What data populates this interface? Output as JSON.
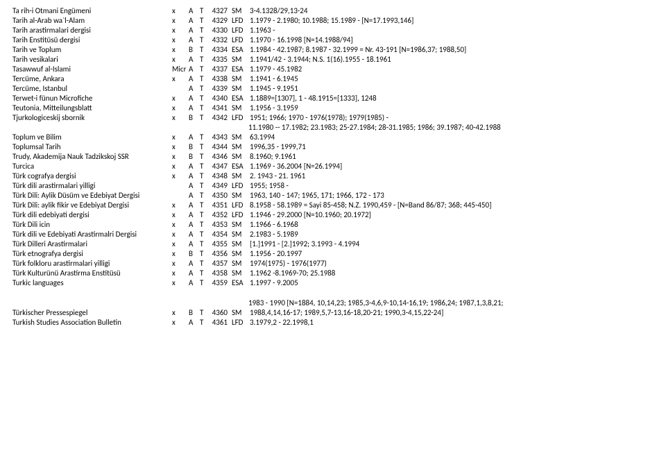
{
  "rows": [
    {
      "title": "Ta rih-i Otmani Engümeni",
      "x": "x",
      "lvl": "A",
      "t": "T",
      "num": "4327",
      "fmt": "SM",
      "range": "3-4.1328/29,13-24"
    },
    {
      "title": "Tarih al-Arab wa`l-Alam",
      "x": "x",
      "lvl": "A",
      "t": "T",
      "num": "4329",
      "fmt": "LFD",
      "range": "1.1979 - 2.1980; 10.1988; 15.1989 - [N=17.1993,146]"
    },
    {
      "title": "Tarih arastirmalari dergisi",
      "x": "x",
      "lvl": "A",
      "t": "T",
      "num": "4330",
      "fmt": "LFD",
      "range": "1.1963 -"
    },
    {
      "title": "Tarih Enstitüsü dergisi",
      "x": "x",
      "lvl": "A",
      "t": "T",
      "num": "4332",
      "fmt": "LFD",
      "range": "1.1970 - 16.1998 [N=14.1988/94]"
    },
    {
      "title": "Tarih ve Toplum",
      "x": "x",
      "lvl": "B",
      "t": "T",
      "num": "4334",
      "fmt": "ESA",
      "range": "1.1984 - 42.1987; 8.1987 - 32.1999 = Nr. 43-191 [N=1986,37; 1988,50]"
    },
    {
      "title": "Tarih vesikalari",
      "x": "x",
      "lvl": "A",
      "t": "T",
      "num": "4335",
      "fmt": "SM",
      "range": "1.1941/42 - 3.1944; N.S. 1(16).1955 - 18.1961"
    },
    {
      "title": "Tasawwuf al-Islami",
      "x": "Micr",
      "lvl": "A",
      "t": "T",
      "num": "4337",
      "fmt": "ESA",
      "range": "1.1979 - 45.1982"
    },
    {
      "title": "Tercüme, Ankara",
      "x": "x",
      "lvl": "A",
      "t": "T",
      "num": "4338",
      "fmt": "SM",
      "range": "1.1941 - 6.1945"
    },
    {
      "title": "Tercüme, Istanbul",
      "x": "",
      "lvl": "A",
      "t": "T",
      "num": "4339",
      "fmt": "SM",
      "range": "1.1945 - 9.1951"
    },
    {
      "title": "Terwet-i fünun Microfiche",
      "x": "x",
      "lvl": "A",
      "t": "T",
      "num": "4340",
      "fmt": "ESA",
      "range": "1.1889=[1307], 1 - 48.1915=[1333], 1248"
    },
    {
      "title": "Teutonia, Mitteilungsblatt",
      "x": "x",
      "lvl": "A",
      "t": "T",
      "num": "4341",
      "fmt": "SM",
      "range": "1.1956 - 3.1959"
    },
    {
      "title": "Tjurkologiceskij sbornik",
      "x": "x",
      "lvl": "B",
      "t": "T",
      "num": "4342",
      "fmt": "LFD",
      "range": "1951; 1966; 1970 - 1976(1978); 1979(1985) -"
    },
    {
      "continuation": true,
      "range": "11.1980 -- 17.1982; 23.1983; 25-27.1984; 28-31.1985; 1986; 39.1987; 40-42.1988"
    },
    {
      "title": "Toplum ve Bilim",
      "x": "x",
      "lvl": "A",
      "t": "T",
      "num": "4343",
      "fmt": "SM",
      "range": "63.1994"
    },
    {
      "title": "Toplumsal Tarih",
      "x": "x",
      "lvl": "B",
      "t": "T",
      "num": "4344",
      "fmt": "SM",
      "range": "1996,35 - 1999,71"
    },
    {
      "title": "Trudy, Akademija Nauk Tadzikskoj SSR",
      "x": "x",
      "lvl": "B",
      "t": "T",
      "num": "4346",
      "fmt": "SM",
      "range": "8.1960; 9.1961"
    },
    {
      "title": "Turcica",
      "x": "x",
      "lvl": "A",
      "t": "T",
      "num": "4347",
      "fmt": "ESA",
      "range": "1.1969 - 36.2004 [N=26.1994]"
    },
    {
      "title": "Türk cografya dergisi",
      "x": "x",
      "lvl": "A",
      "t": "T",
      "num": "4348",
      "fmt": "SM",
      "range": "2. 1943 - 21. 1961"
    },
    {
      "title": "Türk dili arastirmalari yilligi",
      "x": "",
      "lvl": "A",
      "t": "T",
      "num": "4349",
      "fmt": "LFD",
      "range": "1955; 1958 -"
    },
    {
      "title": "Türk Dili: Aylik Düsüm ve Edebiyat Dergisi",
      "x": "",
      "lvl": "A",
      "t": "T",
      "num": "4350",
      "fmt": "SM",
      "range": "1963, 140 - 147; 1965, 171; 1966, 172 - 173"
    },
    {
      "title": "Türk Dili: aylik fikir ve Edebiyat Dergisi",
      "x": "x",
      "lvl": "A",
      "t": "T",
      "num": "4351",
      "fmt": "LFD",
      "range": "8.1958 - 58.1989 = Sayi 85-458; N.Z. 1990,459 - [N=Band 86/87; 368; 445-450]"
    },
    {
      "title": "Türk dili edebiyati dergisi",
      "x": "x",
      "lvl": "A",
      "t": "T",
      "num": "4352",
      "fmt": "LFD",
      "range": "1.1946 - 29.2000 [N=10.1960; 20.1972]"
    },
    {
      "title": "Türk Dili icin",
      "x": "x",
      "lvl": "A",
      "t": "T",
      "num": "4353",
      "fmt": "SM",
      "range": "1.1966 - 6.1968"
    },
    {
      "title": "Türk dili ve Edebiyati Arastirmalri Dergisi",
      "x": "x",
      "lvl": "A",
      "t": "T",
      "num": "4354",
      "fmt": "SM",
      "range": "2.1983 - 5.1989"
    },
    {
      "title": "Türk Dilleri Arastirmalari",
      "x": "x",
      "lvl": "A",
      "t": "T",
      "num": "4355",
      "fmt": "SM",
      "range": "[1.]1991 - [2.]1992; 3.1993 - 4.1994"
    },
    {
      "title": "Türk etnografya dergisi",
      "x": "x",
      "lvl": "B",
      "t": "T",
      "num": "4356",
      "fmt": "SM",
      "range": "1.1956 - 20.1997"
    },
    {
      "title": "Türk folkloru arastirmalari yilligi",
      "x": "x",
      "lvl": "A",
      "t": "T",
      "num": "4357",
      "fmt": "SM",
      "range": "1974(1975) - 1976(1977)"
    },
    {
      "title": "Türk Kulturünü Arastirma Enstitüsü",
      "x": "x",
      "lvl": "A",
      "t": "T",
      "num": "4358",
      "fmt": "SM",
      "range": "1.1962 -8.1969-70; 25.1988"
    },
    {
      "title": "Turkic languages",
      "x": "x",
      "lvl": "A",
      "t": "T",
      "num": "4359",
      "fmt": "ESA",
      "range": "1.1997 - 9.2005"
    },
    {
      "spacer": true
    },
    {
      "continuation": true,
      "range": "1983 - 1990 [N=1884, 10,14,23; 1985,3-4,6,9-10,14-16,19; 1986,24;  1987,1,3,8,21;"
    },
    {
      "title": "Türkischer Pressespiegel",
      "x": "x",
      "lvl": "B",
      "t": "T",
      "num": "4360",
      "fmt": "SM",
      "range": "1988,4,14,16-17; 1989,5,7-13,16-18,20-21; 1990,3-4,15,22-24]"
    },
    {
      "title": "Turkish Studies Association Bulletin",
      "x": "x",
      "lvl": "A",
      "t": "T",
      "num": "4361",
      "fmt": "LFD",
      "range": "3.1979,2 - 22.1998,1"
    }
  ]
}
